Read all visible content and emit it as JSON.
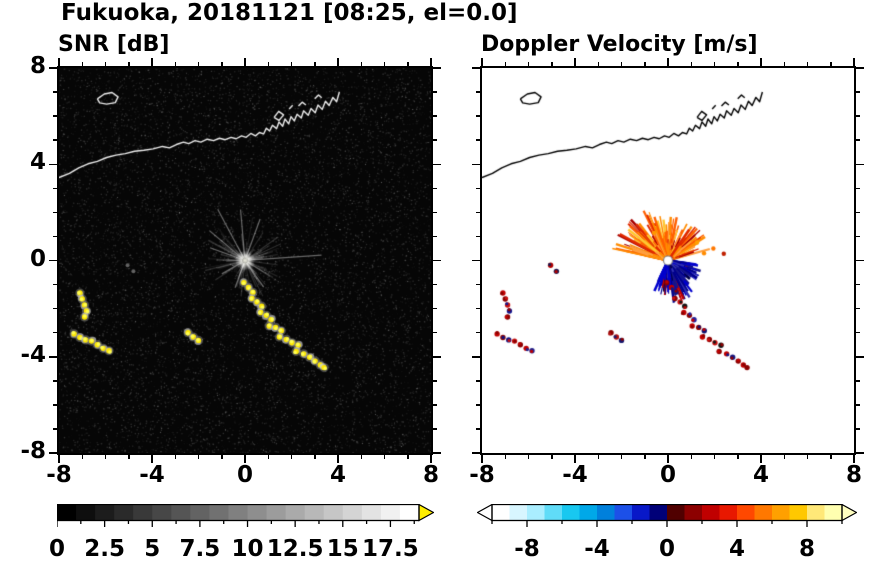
{
  "chart_data": {
    "type": "heatmap",
    "title": "Fukuoka, 20181121 [08:25, el=0.0]",
    "site": "Fukuoka",
    "date": "20181121",
    "time": "08:25",
    "elevation": 0.0,
    "panels": [
      {
        "title": "SNR [dB]",
        "xlim": [
          -8,
          8
        ],
        "ylim": [
          -8,
          8
        ],
        "x_ticks": [
          -8,
          -4,
          0,
          4,
          8
        ],
        "x_tick_texts": [
          "-8",
          "-4",
          "0",
          "4",
          "8"
        ],
        "y_ticks": [
          8,
          4,
          0,
          -4,
          -8
        ],
        "y_tick_texts": [
          "8",
          "4",
          "0",
          "-4",
          "-8"
        ],
        "background": "#000000",
        "colorbar": {
          "units": "dB",
          "range": [
            0,
            19
          ],
          "tick_values": [
            0,
            2.5,
            5,
            7.5,
            10,
            12.5,
            15,
            17.5
          ],
          "tick_texts": [
            "0",
            "2.5",
            "5",
            "7.5",
            "10",
            "12.5",
            "15",
            "17.5"
          ],
          "minor_step": 1.25,
          "colors": [
            "#000000",
            "#0e0e0e",
            "#1c1c1c",
            "#2a2a2a",
            "#393939",
            "#474747",
            "#555555",
            "#636363",
            "#717171",
            "#808080",
            "#8e8e8e",
            "#9c9c9c",
            "#aaaaaa",
            "#b8b8b8",
            "#c6c6c6",
            "#d4d4d4",
            "#e3e3e3",
            "#f1f1f1",
            "#ffffff"
          ],
          "over_arrow": "#ffee00"
        }
      },
      {
        "title": "Doppler Velocity [m/s]",
        "xlim": [
          -8,
          8
        ],
        "ylim": [
          -8,
          8
        ],
        "x_ticks": [
          -8,
          -4,
          0,
          4,
          8
        ],
        "x_tick_texts": [
          "-8",
          "-4",
          "0",
          "4",
          "8"
        ],
        "y_ticks": [
          8,
          4,
          0,
          -4,
          -8
        ],
        "y_tick_texts": [
          "8",
          "4",
          "0",
          "-4",
          "-8"
        ],
        "background": "#ffffff",
        "colorbar": {
          "units": "m/s",
          "range": [
            -10,
            10
          ],
          "tick_values": [
            -8,
            -4,
            0,
            4,
            8
          ],
          "tick_texts": [
            "-8",
            "-4",
            "0",
            "4",
            "8"
          ],
          "minor_step": 2,
          "colors": [
            "#ffffff",
            "#d8f6ff",
            "#aaeeff",
            "#60dcf8",
            "#18c8f0",
            "#00a8e8",
            "#0080dc",
            "#1c50e8",
            "#0818c8",
            "#000078",
            "#500000",
            "#8c0000",
            "#c00000",
            "#e81800",
            "#ff4800",
            "#ff7800",
            "#ffa000",
            "#ffc800",
            "#ffe878",
            "#ffffb0"
          ],
          "under_arrow": "#ffffff",
          "over_arrow": "#ffffc0"
        }
      }
    ],
    "radar_center": [
      0,
      0
    ],
    "geography": {
      "coast": [
        [
          -8,
          3.45
        ],
        [
          -7.55,
          3.62
        ],
        [
          -7.15,
          3.85
        ],
        [
          -6.75,
          4.02
        ],
        [
          -6.35,
          4.12
        ],
        [
          -5.95,
          4.28
        ],
        [
          -5.55,
          4.38
        ],
        [
          -5.15,
          4.44
        ],
        [
          -4.75,
          4.54
        ],
        [
          -4.35,
          4.58
        ],
        [
          -3.95,
          4.64
        ],
        [
          -3.55,
          4.74
        ],
        [
          -3.25,
          4.68
        ],
        [
          -2.95,
          4.82
        ],
        [
          -2.65,
          4.92
        ],
        [
          -2.42,
          4.86
        ],
        [
          -2.15,
          4.98
        ],
        [
          -1.9,
          4.92
        ],
        [
          -1.62,
          5.04
        ],
        [
          -1.35,
          4.98
        ],
        [
          -1.1,
          5.08
        ],
        [
          -0.85,
          5.02
        ],
        [
          -0.6,
          5.12
        ],
        [
          -0.38,
          5.06
        ],
        [
          -0.15,
          5.18
        ],
        [
          0.05,
          5.12
        ],
        [
          0.25,
          5.28
        ],
        [
          0.45,
          5.18
        ],
        [
          0.62,
          5.32
        ],
        [
          0.8,
          5.26
        ],
        [
          0.92,
          5.5
        ],
        [
          1.06,
          5.38
        ],
        [
          1.18,
          5.62
        ],
        [
          1.36,
          5.48
        ],
        [
          1.46,
          5.76
        ],
        [
          1.62,
          5.58
        ],
        [
          1.72,
          5.88
        ],
        [
          1.88,
          5.68
        ],
        [
          1.98,
          5.98
        ],
        [
          2.12,
          5.8
        ],
        [
          2.24,
          6.08
        ],
        [
          2.42,
          5.92
        ],
        [
          2.52,
          6.22
        ],
        [
          2.72,
          6.04
        ],
        [
          2.84,
          6.32
        ],
        [
          3.02,
          6.14
        ],
        [
          3.14,
          6.46
        ],
        [
          3.32,
          6.28
        ],
        [
          3.46,
          6.62
        ],
        [
          3.62,
          6.44
        ],
        [
          3.78,
          6.78
        ],
        [
          3.94,
          6.6
        ],
        [
          4.06,
          7.0
        ]
      ],
      "island": [
        [
          -6.35,
          6.72
        ],
        [
          -6.05,
          6.92
        ],
        [
          -5.72,
          6.98
        ],
        [
          -5.46,
          6.8
        ],
        [
          -5.58,
          6.56
        ],
        [
          -5.95,
          6.5
        ],
        [
          -6.25,
          6.55
        ],
        [
          -6.35,
          6.72
        ]
      ],
      "structures": [
        [
          [
            1.25,
            5.95
          ],
          [
            1.45,
            6.2
          ],
          [
            1.66,
            6.05
          ],
          [
            1.46,
            5.82
          ],
          [
            1.25,
            5.95
          ]
        ],
        [
          [
            2.3,
            6.42
          ],
          [
            2.46,
            6.58
          ],
          [
            2.62,
            6.46
          ]
        ],
        [
          [
            3.0,
            6.72
          ],
          [
            3.16,
            6.88
          ],
          [
            3.3,
            6.76
          ]
        ],
        [
          [
            1.9,
            6.3
          ],
          [
            2.05,
            6.45
          ]
        ]
      ]
    },
    "snr_field": {
      "noise_density": 16000,
      "spoke_count": 140,
      "long_spokes": [
        {
          "a": 4,
          "l": 3.3
        },
        {
          "a": 70,
          "l": 1.9
        },
        {
          "a": 95,
          "l": 2.2
        },
        {
          "a": 118,
          "l": 2.5
        },
        {
          "a": 140,
          "l": 2.0
        },
        {
          "a": 160,
          "l": 1.6
        },
        {
          "a": 210,
          "l": 1.15
        },
        {
          "a": 250,
          "l": 1.25
        },
        {
          "a": 305,
          "l": 1.4
        }
      ],
      "clutter_color": "#ffe800"
    },
    "doppler_field": {
      "up_fan": {
        "ang": [
          15,
          168
        ],
        "len": [
          0.15,
          1.9
        ],
        "count": 340,
        "colors": [
          "#ff8c00",
          "#ffa040",
          "#ff6000",
          "#e02800",
          "#a80000",
          "#ffc830"
        ],
        "weights": [
          0.32,
          0.2,
          0.18,
          0.12,
          0.08,
          0.1
        ],
        "core_r": 0.5,
        "core_color": "#ff8c00",
        "bias": [
          95,
          168,
          1.3
        ]
      },
      "down_fan": {
        "ang": [
          -116,
          -6
        ],
        "len": [
          0.1,
          1.5
        ],
        "count": 300,
        "colors": [
          "#00008b",
          "#0000cd",
          "#16168c",
          "#3030b4",
          "#000048",
          "#c00000"
        ],
        "weights": [
          0.3,
          0.24,
          0.2,
          0.13,
          0.1,
          0.03
        ],
        "core_r": 0.45,
        "core_color": "#0000a0",
        "bias": [
          -85,
          -40,
          1.25
        ]
      },
      "specks": [
        [
          1.55,
          0.3,
          "#ff8c00"
        ],
        [
          1.95,
          0.5,
          "#ff7800"
        ],
        [
          2.4,
          0.28,
          "#c02000"
        ],
        [
          1.25,
          0.75,
          "#ffa000"
        ],
        [
          -0.6,
          1.15,
          "#ff9800"
        ]
      ],
      "center_marker": {
        "radius_px": 4.5,
        "fill": "#ffffff",
        "stroke": "#808080"
      }
    },
    "clutter_clusters": [
      {
        "faint": true,
        "points": [
          [
            -5.05,
            -0.2
          ],
          [
            -4.8,
            -0.45
          ]
        ],
        "doppler_colors": [
          "#b00000",
          "#181850"
        ]
      },
      {
        "faint": false,
        "points": [
          [
            -7.1,
            -1.35
          ],
          [
            -7.0,
            -1.6
          ],
          [
            -6.9,
            -1.85
          ],
          [
            -6.82,
            -2.1
          ],
          [
            -6.9,
            -2.35
          ]
        ],
        "doppler_colors": [
          "#c00000",
          "#8b0000",
          "#c81010",
          "#16168c",
          "#8b0000"
        ]
      },
      {
        "faint": false,
        "points": [
          [
            -7.35,
            -3.05
          ],
          [
            -7.1,
            -3.2
          ],
          [
            -6.85,
            -3.3
          ],
          [
            -6.6,
            -3.35
          ],
          [
            -6.35,
            -3.5
          ],
          [
            -6.1,
            -3.65
          ],
          [
            -5.85,
            -3.75
          ]
        ],
        "doppler_colors": [
          "#c00000",
          "#8b0000",
          "#101080",
          "#c81010",
          "#8b0000",
          "#c00000",
          "#20208c"
        ]
      },
      {
        "faint": false,
        "points": [
          [
            -2.45,
            -3.0
          ],
          [
            -2.22,
            -3.18
          ],
          [
            -2.0,
            -3.32
          ]
        ],
        "doppler_colors": [
          "#8b0000",
          "#b01010",
          "#18186e"
        ]
      },
      {
        "faint": false,
        "points": [
          [
            -0.05,
            -0.92
          ],
          [
            0.15,
            -1.12
          ],
          [
            0.34,
            -1.32
          ],
          [
            0.3,
            -1.58
          ],
          [
            0.52,
            -1.72
          ],
          [
            0.72,
            -1.9
          ],
          [
            0.68,
            -2.16
          ],
          [
            0.92,
            -2.28
          ],
          [
            1.12,
            -2.46
          ],
          [
            1.04,
            -2.72
          ],
          [
            1.32,
            -2.78
          ],
          [
            1.56,
            -2.92
          ],
          [
            1.48,
            -3.18
          ],
          [
            1.78,
            -3.28
          ],
          [
            2.02,
            -3.42
          ],
          [
            2.28,
            -3.52
          ],
          [
            2.2,
            -3.78
          ],
          [
            2.52,
            -3.88
          ],
          [
            2.78,
            -4.02
          ],
          [
            3.02,
            -4.18
          ],
          [
            3.24,
            -4.34
          ],
          [
            3.4,
            -4.45
          ]
        ],
        "doppler_colors": [
          "#8b0000",
          "#c00000",
          "#151580",
          "#8b0000",
          "#d01010",
          "#141414",
          "#c00000",
          "#8b0000",
          "#2020a0",
          "#c00000",
          "#8b0000",
          "#101070",
          "#c00000",
          "#8b0000",
          "#c81010",
          "#141414",
          "#8b0000",
          "#c00000",
          "#151580",
          "#8b0000",
          "#c00000",
          "#8b0000"
        ]
      }
    ]
  }
}
